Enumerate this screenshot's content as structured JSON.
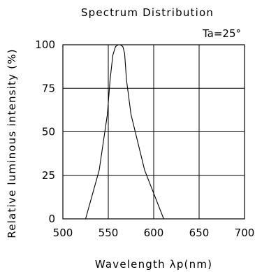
{
  "chart_data": {
    "type": "line",
    "title": "Spectrum Distribution",
    "xlabel": "Wavelength λp(nm)",
    "ylabel": "Relative luminous intensity (%)",
    "annotation": "Ta=25°",
    "xlim": [
      500,
      700
    ],
    "ylim": [
      0,
      100
    ],
    "x_ticks": [
      500,
      550,
      600,
      650,
      700
    ],
    "y_ticks": [
      0,
      25,
      50,
      75,
      100
    ],
    "grid": true,
    "series": [
      {
        "x": [
          525,
          540,
          549,
          552,
          555,
          558,
          561,
          563,
          566,
          568,
          570,
          575,
          590,
          611
        ],
        "y": [
          0,
          28,
          60,
          80,
          94,
          99,
          100,
          100,
          99,
          95,
          80,
          60,
          28,
          0
        ]
      }
    ]
  }
}
